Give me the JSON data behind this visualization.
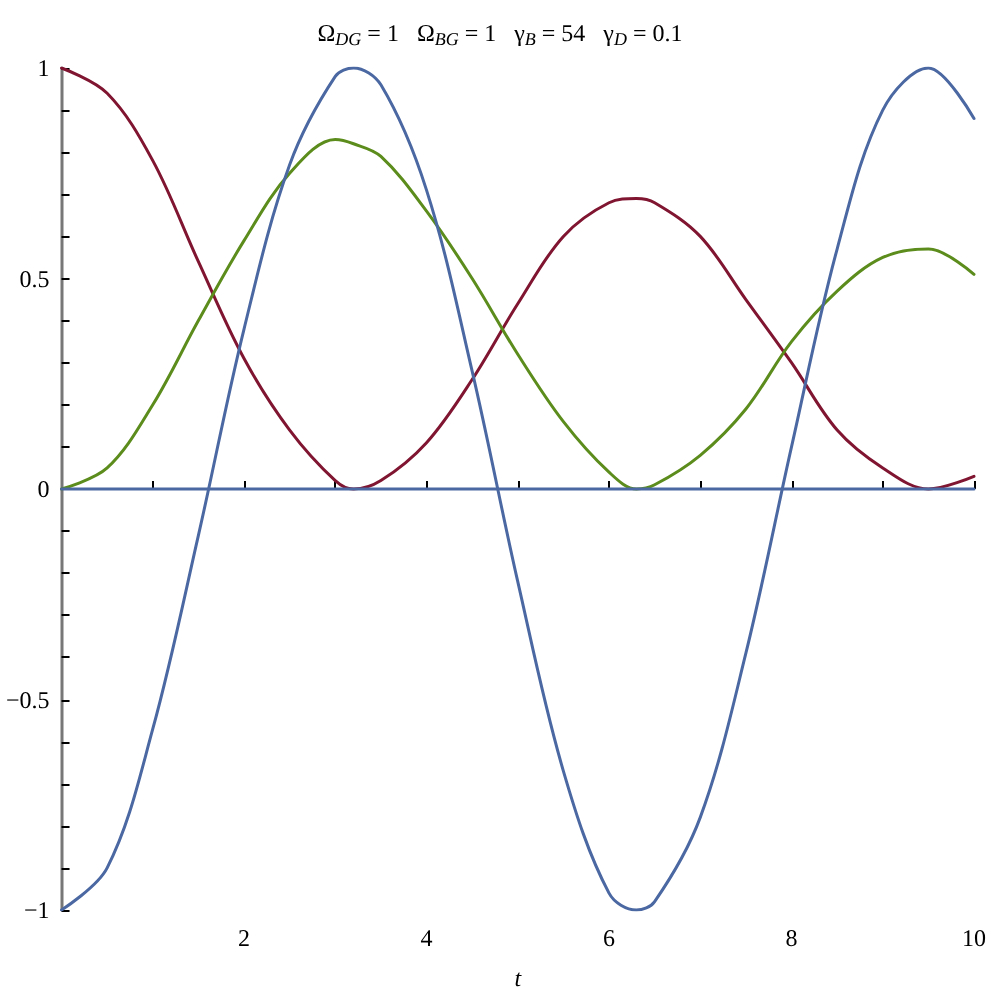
{
  "chart_data": {
    "type": "line",
    "title": "Ω$_{DG}$ = 1   Ω$_{BG}$ = 1   γ$_{B}$ = 54   γ$_{D}$ = 0.1",
    "xlabel": "t",
    "x": [
      0,
      0.5,
      1,
      1.5,
      2,
      2.5,
      3,
      3.2,
      3.5,
      4,
      4.5,
      5,
      5.5,
      6,
      6.3,
      6.5,
      7,
      7.5,
      8,
      8.5,
      9,
      9.5,
      10
    ],
    "series": [
      {
        "color": "#7f1530",
        "values": [
          1,
          0.94,
          0.78,
          0.54,
          0.31,
          0.14,
          0.02,
          0,
          0.02,
          0.11,
          0.26,
          0.44,
          0.6,
          0.68,
          0.69,
          0.68,
          0.6,
          0.45,
          0.3,
          0.14,
          0.05,
          0,
          0.03
        ]
      },
      {
        "color": "#5b8c1c",
        "values": [
          0,
          0.05,
          0.2,
          0.4,
          0.59,
          0.75,
          0.83,
          0.82,
          0.79,
          0.66,
          0.5,
          0.32,
          0.16,
          0.04,
          0,
          0.01,
          0.08,
          0.19,
          0.35,
          0.47,
          0.55,
          0.57,
          0.51
        ]
      },
      {
        "color": "#4b68a2",
        "values": [
          -1,
          -0.9,
          -0.57,
          -0.11,
          0.38,
          0.77,
          0.98,
          1,
          0.96,
          0.71,
          0.28,
          -0.22,
          -0.67,
          -0.96,
          -1,
          -0.98,
          -0.78,
          -0.39,
          0.1,
          0.57,
          0.9,
          1,
          0.88
        ]
      },
      {
        "color": "#4b68a2",
        "values": [
          0,
          0,
          0,
          0,
          0,
          0,
          0,
          0,
          0,
          0,
          0,
          0,
          0,
          0,
          0,
          0,
          0,
          0,
          0,
          0,
          0,
          0,
          0
        ]
      }
    ],
    "xlim": [
      0,
      10
    ],
    "xticks": [
      {
        "value": 1,
        "label": null
      },
      2,
      {
        "value": 3,
        "label": null
      },
      4,
      {
        "value": 5,
        "label": null
      },
      6,
      {
        "value": 7,
        "label": null
      },
      8,
      {
        "value": 9,
        "label": null
      },
      10
    ],
    "ylim": [
      -1,
      1
    ],
    "yticks": [
      {
        "value": -1,
        "label": "−1"
      },
      {
        "value": -0.9,
        "label": null
      },
      {
        "value": -0.8,
        "label": null
      },
      {
        "value": -0.7,
        "label": null
      },
      {
        "value": -0.6,
        "label": null
      },
      {
        "value": -0.5,
        "label": "−0.5"
      },
      {
        "value": -0.4,
        "label": null
      },
      {
        "value": -0.3,
        "label": null
      },
      {
        "value": -0.2,
        "label": null
      },
      {
        "value": -0.1,
        "label": null
      },
      0,
      {
        "value": 0.1,
        "label": null
      },
      {
        "value": 0.2,
        "label": null
      },
      {
        "value": 0.3,
        "label": null
      },
      {
        "value": 0.4,
        "label": null
      },
      0.5,
      {
        "value": 0.6,
        "label": null
      },
      {
        "value": 0.7,
        "label": null
      },
      {
        "value": 0.8,
        "label": null
      },
      {
        "value": 0.9,
        "label": null
      },
      1
    ]
  }
}
